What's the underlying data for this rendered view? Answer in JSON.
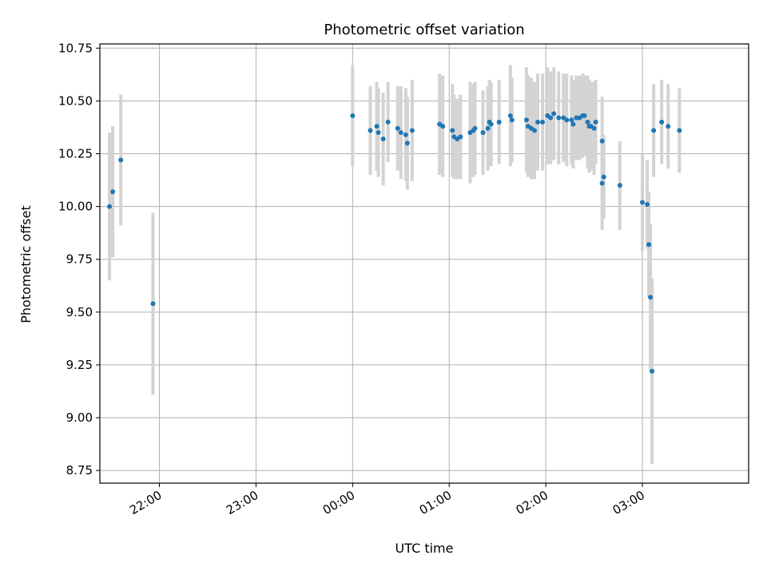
{
  "chart_data": {
    "type": "scatter",
    "title": "Photometric offset variation",
    "xlabel": "UTC time",
    "ylabel": "Photometric offset",
    "grid": true,
    "xlim": [
      "21:23",
      "04:06"
    ],
    "ylim": [
      8.69,
      10.77
    ],
    "x_ticks": [
      "22:00",
      "23:00",
      "00:00",
      "01:00",
      "02:00",
      "03:00"
    ],
    "y_ticks": [
      "8.75",
      "9.00",
      "9.25",
      "9.50",
      "9.75",
      "10.00",
      "10.25",
      "10.50",
      "10.75"
    ],
    "colors": {
      "point": "#1f77b4",
      "errorbar": "#d3d3d3",
      "grid": "#b0b0b0"
    },
    "series": [
      {
        "x": [
          "21:29",
          "21:31",
          "21:36",
          "21:56",
          "00:00",
          "00:11",
          "00:15",
          "00:16",
          "00:19",
          "00:22",
          "00:28",
          "00:30",
          "00:33",
          "00:34",
          "00:37",
          "00:54",
          "00:56",
          "01:02",
          "01:03",
          "01:05",
          "01:07",
          "01:13",
          "01:15",
          "01:16",
          "01:21",
          "01:24",
          "01:25",
          "01:26",
          "01:31",
          "01:38",
          "01:39",
          "01:48",
          "01:49",
          "01:51",
          "01:53",
          "01:55",
          "01:58",
          "02:01",
          "02:03",
          "02:05",
          "02:08",
          "02:11",
          "02:13",
          "02:16",
          "02:17",
          "02:19",
          "02:21",
          "02:23",
          "02:24",
          "02:26",
          "02:27",
          "02:28",
          "02:30",
          "02:31",
          "02:35",
          "02:36",
          "02:35",
          "02:46",
          "03:00",
          "03:03",
          "03:04",
          "03:05",
          "03:06",
          "03:07",
          "03:12",
          "03:16",
          "03:23"
        ],
        "y": [
          10.0,
          10.07,
          10.22,
          9.54,
          10.43,
          10.36,
          10.38,
          10.35,
          10.32,
          10.4,
          10.37,
          10.35,
          10.34,
          10.3,
          10.36,
          10.39,
          10.38,
          10.36,
          10.33,
          10.32,
          10.33,
          10.35,
          10.36,
          10.37,
          10.35,
          10.37,
          10.4,
          10.39,
          10.4,
          10.43,
          10.41,
          10.41,
          10.38,
          10.37,
          10.36,
          10.4,
          10.4,
          10.43,
          10.42,
          10.44,
          10.42,
          10.42,
          10.41,
          10.41,
          10.39,
          10.42,
          10.42,
          10.43,
          10.43,
          10.4,
          10.38,
          10.38,
          10.37,
          10.4,
          10.31,
          10.14,
          10.11,
          10.1,
          10.02,
          10.01,
          9.82,
          9.57,
          9.22,
          10.36,
          10.4,
          10.38,
          10.36
        ],
        "yerr": [
          0.35,
          0.31,
          0.31,
          0.43,
          0.24,
          0.21,
          0.21,
          0.21,
          0.22,
          0.19,
          0.2,
          0.22,
          0.22,
          0.22,
          0.24,
          0.24,
          0.24,
          0.22,
          0.2,
          0.19,
          0.2,
          0.24,
          0.22,
          0.22,
          0.2,
          0.2,
          0.2,
          0.2,
          0.2,
          0.24,
          0.2,
          0.25,
          0.24,
          0.24,
          0.23,
          0.23,
          0.23,
          0.23,
          0.22,
          0.22,
          0.22,
          0.21,
          0.22,
          0.21,
          0.21,
          0.2,
          0.2,
          0.2,
          0.19,
          0.22,
          0.22,
          0.21,
          0.22,
          0.2,
          0.21,
          0.2,
          0.22,
          0.21,
          0.23,
          0.21,
          0.25,
          0.35,
          0.44,
          0.22,
          0.2,
          0.2,
          0.2
        ]
      }
    ]
  }
}
